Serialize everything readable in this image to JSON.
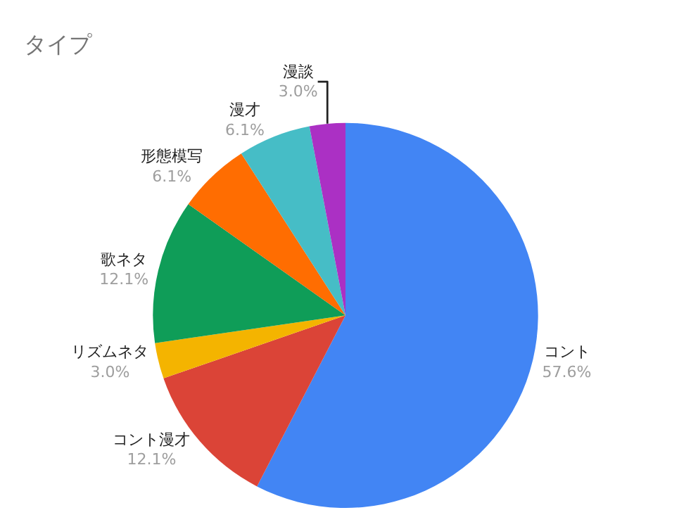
{
  "chart_data": {
    "type": "pie",
    "title": "タイプ",
    "categories": [
      "コント",
      "コント漫才",
      "リズムネタ",
      "歌ネタ",
      "形態模写",
      "漫才",
      "漫談"
    ],
    "values": [
      57.6,
      12.1,
      3.0,
      12.1,
      6.1,
      6.1,
      3.0
    ],
    "value_labels": [
      "57.6%",
      "12.1%",
      "3.0%",
      "12.1%",
      "6.1%",
      "6.1%",
      "3.0%"
    ],
    "colors": [
      "#4285f4",
      "#db4437",
      "#f4b400",
      "#0f9d58",
      "#ff6d01",
      "#46bdc6",
      "#ab30c4"
    ],
    "legend": false
  }
}
